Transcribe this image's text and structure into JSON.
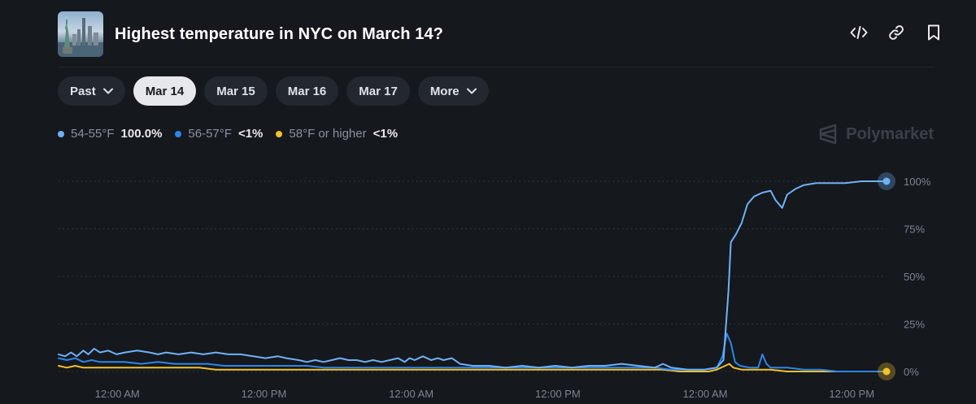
{
  "header": {
    "title": "Highest temperature in NYC on March 14?",
    "icons": [
      "embed-icon",
      "link-icon",
      "bookmark-icon"
    ]
  },
  "tabs": [
    {
      "label": "Past",
      "dropdown": true,
      "active": false
    },
    {
      "label": "Mar 14",
      "dropdown": false,
      "active": true
    },
    {
      "label": "Mar 15",
      "dropdown": false,
      "active": false
    },
    {
      "label": "Mar 16",
      "dropdown": false,
      "active": false
    },
    {
      "label": "Mar 17",
      "dropdown": false,
      "active": false
    },
    {
      "label": "More",
      "dropdown": true,
      "active": false
    }
  ],
  "brand": {
    "name": "Polymarket"
  },
  "colors": {
    "series1": "#6fb1f7",
    "series2": "#2e86e8",
    "series3": "#f2c12e",
    "background": "#15181d",
    "grid": "#3a3f47",
    "tick": "#7d848e"
  },
  "chart_data": {
    "type": "line",
    "title": "",
    "xlabel": "",
    "ylabel": "",
    "ylim": [
      0,
      100
    ],
    "y_ticks": [
      {
        "value": 100,
        "label": "100%"
      },
      {
        "value": 75,
        "label": "75%"
      },
      {
        "value": 50,
        "label": "50%"
      },
      {
        "value": 25,
        "label": "25%"
      },
      {
        "value": 0,
        "label": "0%"
      }
    ],
    "x_range": [
      0,
      100
    ],
    "x_ticks": [
      {
        "value": 7.1,
        "label": "12:00 AM"
      },
      {
        "value": 24.8,
        "label": "12:00 PM"
      },
      {
        "value": 42.6,
        "label": "12:00 AM"
      },
      {
        "value": 60.3,
        "label": "12:00 PM"
      },
      {
        "value": 78.1,
        "label": "12:00 AM"
      },
      {
        "value": 95.8,
        "label": "12:00 PM"
      }
    ],
    "series": [
      {
        "name": "54-55°F",
        "label": "100.0%",
        "color": "#6fb1f7",
        "points": [
          [
            0,
            9
          ],
          [
            0.8,
            8
          ],
          [
            1.5,
            10
          ],
          [
            2.2,
            8
          ],
          [
            3,
            11
          ],
          [
            3.6,
            9
          ],
          [
            4.3,
            12
          ],
          [
            5,
            10
          ],
          [
            6,
            11
          ],
          [
            7,
            9
          ],
          [
            8,
            10
          ],
          [
            9.5,
            11
          ],
          [
            11,
            10
          ],
          [
            12,
            9
          ],
          [
            13,
            10
          ],
          [
            14.5,
            9
          ],
          [
            16,
            10
          ],
          [
            17.5,
            9
          ],
          [
            19,
            10
          ],
          [
            20.5,
            9
          ],
          [
            22,
            9
          ],
          [
            23.5,
            8
          ],
          [
            25,
            7
          ],
          [
            26.5,
            8
          ],
          [
            27.5,
            7
          ],
          [
            29,
            6
          ],
          [
            30,
            5
          ],
          [
            31,
            6
          ],
          [
            32,
            5
          ],
          [
            33,
            6
          ],
          [
            34,
            7
          ],
          [
            35,
            6
          ],
          [
            36,
            6
          ],
          [
            37,
            5
          ],
          [
            38,
            6
          ],
          [
            39,
            5
          ],
          [
            40,
            6
          ],
          [
            41,
            7
          ],
          [
            41.8,
            5
          ],
          [
            42.4,
            7
          ],
          [
            43,
            6
          ],
          [
            44,
            8
          ],
          [
            45,
            6
          ],
          [
            45.8,
            7
          ],
          [
            46.5,
            6
          ],
          [
            47.5,
            7
          ],
          [
            48.5,
            4
          ],
          [
            50,
            3
          ],
          [
            52,
            3
          ],
          [
            54,
            2
          ],
          [
            56,
            3
          ],
          [
            58,
            2
          ],
          [
            60,
            3
          ],
          [
            62,
            2
          ],
          [
            64,
            3
          ],
          [
            66,
            3
          ],
          [
            68,
            4
          ],
          [
            70,
            3
          ],
          [
            72,
            2
          ],
          [
            73,
            4
          ],
          [
            74,
            2
          ],
          [
            76,
            1
          ],
          [
            78,
            1
          ],
          [
            79.5,
            2
          ],
          [
            80.3,
            6
          ],
          [
            80.9,
            42
          ],
          [
            81.2,
            68
          ],
          [
            81.8,
            72
          ],
          [
            82.5,
            78
          ],
          [
            83.2,
            88
          ],
          [
            84,
            92
          ],
          [
            85,
            94
          ],
          [
            86,
            95
          ],
          [
            86.6,
            90
          ],
          [
            87.4,
            86
          ],
          [
            88,
            93
          ],
          [
            89,
            96
          ],
          [
            90,
            98
          ],
          [
            91.5,
            99
          ],
          [
            93,
            99
          ],
          [
            95,
            99
          ],
          [
            97,
            100
          ],
          [
            99,
            100
          ],
          [
            100,
            100
          ]
        ]
      },
      {
        "name": "56-57°F",
        "label": "<1%",
        "color": "#2e86e8",
        "points": [
          [
            0,
            7
          ],
          [
            1,
            6
          ],
          [
            2,
            7
          ],
          [
            3,
            5
          ],
          [
            4,
            6
          ],
          [
            5,
            5
          ],
          [
            6,
            5
          ],
          [
            8,
            5
          ],
          [
            10,
            4
          ],
          [
            12,
            5
          ],
          [
            14,
            4
          ],
          [
            16,
            4
          ],
          [
            18,
            4
          ],
          [
            20,
            3
          ],
          [
            22,
            3
          ],
          [
            24,
            3
          ],
          [
            26,
            3
          ],
          [
            28,
            3
          ],
          [
            30,
            3
          ],
          [
            32,
            2
          ],
          [
            34,
            2
          ],
          [
            36,
            2
          ],
          [
            38,
            2
          ],
          [
            40,
            2
          ],
          [
            42,
            2
          ],
          [
            44,
            2
          ],
          [
            46,
            2
          ],
          [
            48,
            2
          ],
          [
            50,
            2
          ],
          [
            52,
            2
          ],
          [
            54,
            2
          ],
          [
            56,
            2
          ],
          [
            58,
            2
          ],
          [
            60,
            2
          ],
          [
            62,
            2
          ],
          [
            64,
            2
          ],
          [
            66,
            2
          ],
          [
            68,
            2
          ],
          [
            70,
            2
          ],
          [
            72,
            2
          ],
          [
            74,
            1
          ],
          [
            76,
            1
          ],
          [
            78,
            1
          ],
          [
            79.5,
            2
          ],
          [
            80.2,
            8
          ],
          [
            80.7,
            20
          ],
          [
            81.2,
            15
          ],
          [
            81.7,
            5
          ],
          [
            82.3,
            3
          ],
          [
            83.5,
            2
          ],
          [
            84.5,
            2
          ],
          [
            85,
            9
          ],
          [
            85.5,
            4
          ],
          [
            86,
            2
          ],
          [
            88,
            2
          ],
          [
            90,
            1
          ],
          [
            92,
            1
          ],
          [
            94,
            0
          ],
          [
            96,
            0
          ],
          [
            98,
            0
          ],
          [
            100,
            0
          ]
        ]
      },
      {
        "name": "58°F or higher",
        "label": "<1%",
        "color": "#f2c12e",
        "points": [
          [
            0,
            3
          ],
          [
            1,
            2
          ],
          [
            2,
            3
          ],
          [
            3,
            2
          ],
          [
            4,
            2
          ],
          [
            5,
            2
          ],
          [
            7,
            2
          ],
          [
            9,
            2
          ],
          [
            11,
            2
          ],
          [
            13,
            2
          ],
          [
            15,
            2
          ],
          [
            17,
            2
          ],
          [
            19,
            1
          ],
          [
            21,
            1
          ],
          [
            23,
            1
          ],
          [
            25,
            1
          ],
          [
            27,
            1
          ],
          [
            29,
            1
          ],
          [
            31,
            1
          ],
          [
            33,
            1
          ],
          [
            35,
            1
          ],
          [
            37,
            1
          ],
          [
            39,
            1
          ],
          [
            41,
            1
          ],
          [
            43,
            1
          ],
          [
            45,
            1
          ],
          [
            47,
            1
          ],
          [
            49,
            1
          ],
          [
            51,
            1
          ],
          [
            53,
            1
          ],
          [
            55,
            1
          ],
          [
            57,
            1
          ],
          [
            59,
            1
          ],
          [
            61,
            1
          ],
          [
            63,
            1
          ],
          [
            65,
            1
          ],
          [
            67,
            1
          ],
          [
            69,
            1
          ],
          [
            71,
            1
          ],
          [
            73,
            1
          ],
          [
            75,
            0
          ],
          [
            77,
            0
          ],
          [
            78.5,
            0
          ],
          [
            79.5,
            1
          ],
          [
            80.5,
            3
          ],
          [
            81,
            4
          ],
          [
            81.5,
            2
          ],
          [
            82.5,
            1
          ],
          [
            84,
            1
          ],
          [
            86,
            1
          ],
          [
            88,
            0
          ],
          [
            90,
            0
          ],
          [
            92,
            0
          ],
          [
            94,
            0
          ],
          [
            96,
            0
          ],
          [
            98,
            0
          ],
          [
            100,
            0
          ]
        ]
      }
    ]
  }
}
